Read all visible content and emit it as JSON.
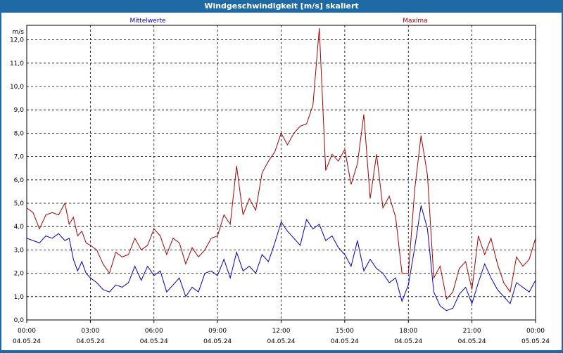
{
  "window": {
    "title": "Windgeschwindigkeit [m/s] skaliert"
  },
  "chart_data": {
    "type": "line",
    "title": "Windgeschwindigkeit [m/s] skaliert",
    "ylabel": "m/s",
    "ylim": [
      0,
      12.5
    ],
    "yticks": [
      "0,0",
      "1,0",
      "2,0",
      "3,0",
      "4,0",
      "5,0",
      "6,0",
      "7,0",
      "8,0",
      "9,0",
      "10,0",
      "11,0",
      "12,0"
    ],
    "xlim_hours": [
      0,
      24
    ],
    "xticks": [
      {
        "time": "00:00",
        "date": "04.05.24"
      },
      {
        "time": "03:00",
        "date": "04.05.24"
      },
      {
        "time": "06:00",
        "date": "04.05.24"
      },
      {
        "time": "09:00",
        "date": "04.05.24"
      },
      {
        "time": "12:00",
        "date": "04.05.24"
      },
      {
        "time": "15:00",
        "date": "04.05.24"
      },
      {
        "time": "18:00",
        "date": "04.05.24"
      },
      {
        "time": "21:00",
        "date": "04.05.24"
      },
      {
        "time": "00:00",
        "date": "05.05.24"
      }
    ],
    "grid": true,
    "series": [
      {
        "name": "Mittelwerte",
        "color": "#0000cc",
        "x": [
          0.0,
          0.3,
          0.6,
          0.9,
          1.2,
          1.5,
          1.8,
          2.0,
          2.2,
          2.4,
          2.6,
          2.8,
          3.0,
          3.3,
          3.6,
          3.9,
          4.2,
          4.5,
          4.8,
          5.1,
          5.4,
          5.7,
          6.0,
          6.3,
          6.6,
          6.9,
          7.2,
          7.5,
          7.8,
          8.1,
          8.4,
          8.7,
          9.0,
          9.3,
          9.6,
          9.9,
          10.2,
          10.5,
          10.8,
          11.1,
          11.4,
          11.7,
          12.0,
          12.3,
          12.6,
          12.9,
          13.2,
          13.5,
          13.8,
          14.1,
          14.4,
          14.7,
          15.0,
          15.3,
          15.6,
          15.9,
          16.2,
          16.5,
          16.8,
          17.1,
          17.4,
          17.7,
          18.0,
          18.3,
          18.6,
          18.9,
          19.2,
          19.5,
          19.8,
          20.1,
          20.4,
          20.7,
          21.0,
          21.3,
          21.6,
          21.9,
          22.2,
          22.5,
          22.8,
          23.1,
          23.4,
          23.7,
          24.0
        ],
        "values": [
          3.5,
          3.4,
          3.3,
          3.6,
          3.5,
          3.7,
          3.4,
          3.5,
          2.6,
          2.1,
          2.5,
          2.0,
          1.8,
          1.6,
          1.3,
          1.2,
          1.5,
          1.4,
          1.6,
          2.3,
          1.7,
          2.3,
          1.9,
          2.1,
          1.2,
          1.5,
          1.8,
          1.0,
          1.4,
          1.2,
          2.0,
          2.1,
          1.9,
          2.6,
          1.8,
          2.9,
          2.1,
          2.3,
          2.0,
          2.8,
          2.5,
          3.3,
          4.2,
          3.8,
          3.5,
          3.2,
          4.3,
          3.9,
          4.1,
          3.4,
          3.6,
          3.1,
          2.8,
          2.3,
          3.4,
          2.1,
          2.6,
          2.2,
          2.0,
          1.6,
          1.8,
          0.8,
          1.5,
          3.1,
          4.9,
          3.9,
          1.2,
          0.6,
          0.4,
          0.5,
          1.1,
          1.4,
          0.7,
          1.6,
          2.4,
          1.8,
          1.3,
          1.0,
          0.7,
          1.6,
          1.4,
          1.2,
          1.7
        ]
      },
      {
        "name": "Maxima",
        "color": "#aa0000",
        "x": [
          0.0,
          0.3,
          0.6,
          0.9,
          1.2,
          1.5,
          1.8,
          2.0,
          2.2,
          2.4,
          2.6,
          2.8,
          3.0,
          3.3,
          3.6,
          3.9,
          4.2,
          4.5,
          4.8,
          5.1,
          5.4,
          5.7,
          6.0,
          6.3,
          6.6,
          6.9,
          7.2,
          7.5,
          7.8,
          8.1,
          8.4,
          8.7,
          9.0,
          9.3,
          9.6,
          9.9,
          10.2,
          10.5,
          10.8,
          11.1,
          11.4,
          11.7,
          12.0,
          12.3,
          12.6,
          12.9,
          13.2,
          13.5,
          13.8,
          14.1,
          14.4,
          14.7,
          15.0,
          15.3,
          15.6,
          15.9,
          16.2,
          16.5,
          16.8,
          17.1,
          17.4,
          17.7,
          18.0,
          18.3,
          18.6,
          18.9,
          19.2,
          19.5,
          19.8,
          20.1,
          20.4,
          20.7,
          21.0,
          21.3,
          21.6,
          21.9,
          22.2,
          22.5,
          22.8,
          23.1,
          23.4,
          23.7,
          24.0
        ],
        "values": [
          4.8,
          4.6,
          3.9,
          4.5,
          4.6,
          4.5,
          5.0,
          4.1,
          4.4,
          3.6,
          3.8,
          3.3,
          3.2,
          3.0,
          2.4,
          2.0,
          2.9,
          2.7,
          2.8,
          3.5,
          3.0,
          3.2,
          3.9,
          3.6,
          2.8,
          3.5,
          3.3,
          2.4,
          3.1,
          2.7,
          3.0,
          3.5,
          3.6,
          4.5,
          4.1,
          6.6,
          4.5,
          5.2,
          4.7,
          6.3,
          6.8,
          7.2,
          8.0,
          7.5,
          8.0,
          8.3,
          8.4,
          9.2,
          12.5,
          6.4,
          7.1,
          6.8,
          7.3,
          5.8,
          6.7,
          8.8,
          5.2,
          7.1,
          4.8,
          5.3,
          4.4,
          2.0,
          2.0,
          5.6,
          7.9,
          6.2,
          1.8,
          2.3,
          0.9,
          1.2,
          2.2,
          2.5,
          1.3,
          3.6,
          2.8,
          3.5,
          2.4,
          1.6,
          1.2,
          2.7,
          2.3,
          2.6,
          3.5
        ]
      }
    ]
  }
}
